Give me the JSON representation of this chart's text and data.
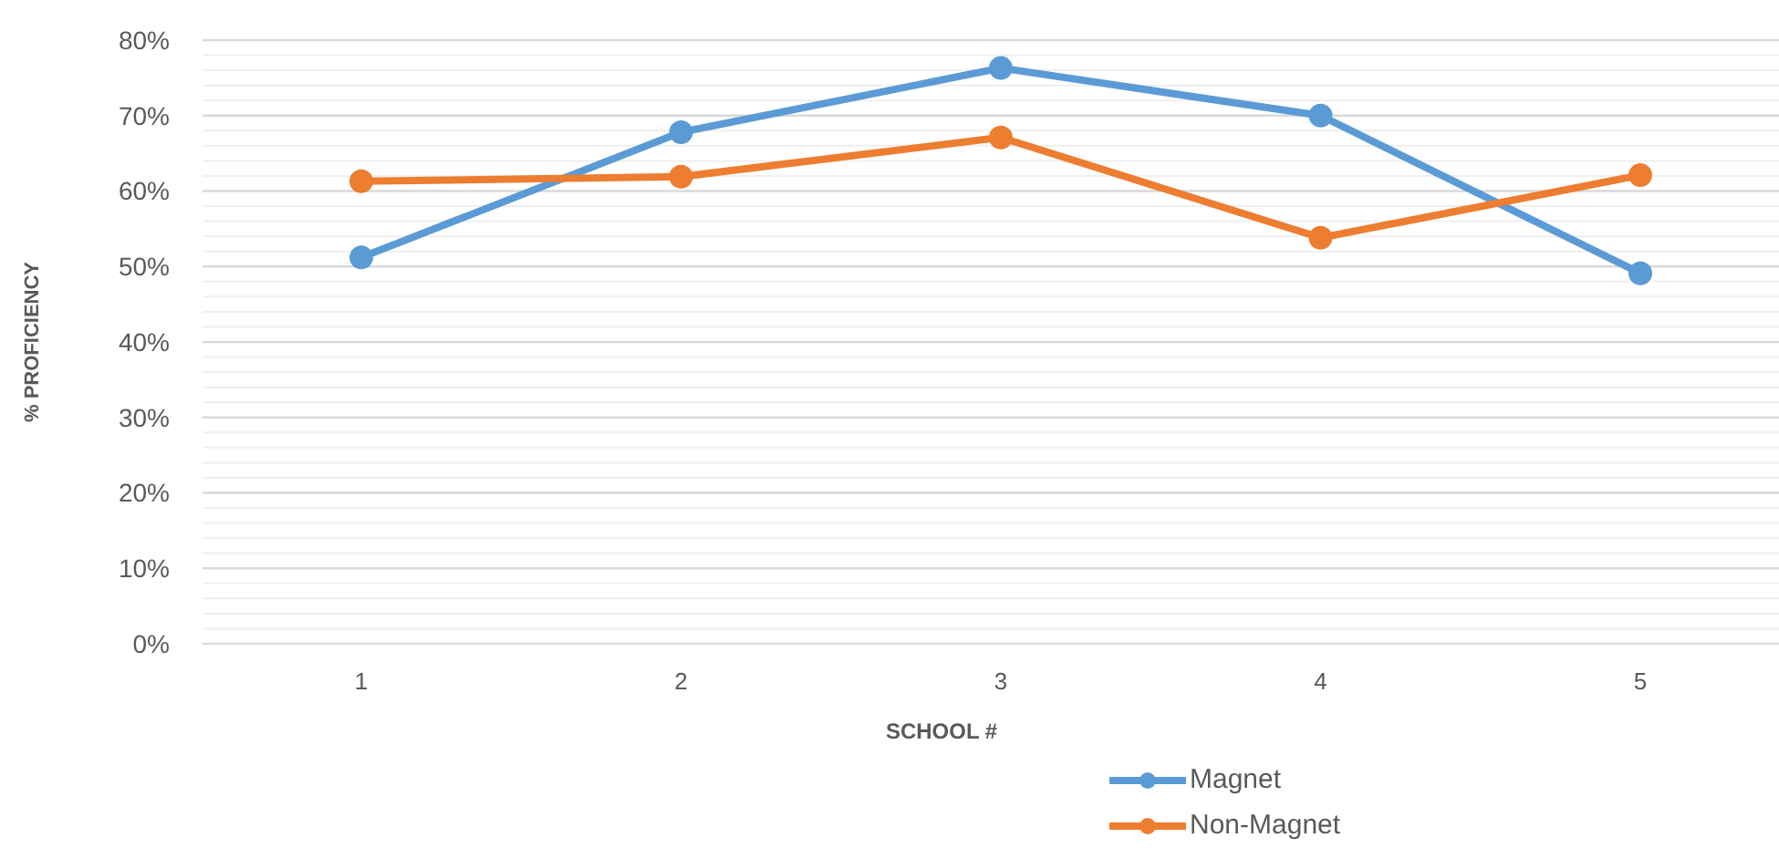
{
  "chart_data": {
    "type": "line",
    "xlabel": "SCHOOL #",
    "ylabel": "% PROFICIENCY",
    "categories": [
      "1",
      "2",
      "3",
      "4",
      "5"
    ],
    "series": [
      {
        "name": "Magnet",
        "color": "#5b9bd5",
        "values": [
          51.2,
          67.8,
          76.3,
          70.0,
          49.1
        ]
      },
      {
        "name": "Non-Magnet",
        "color": "#ed7d31",
        "values": [
          61.3,
          61.9,
          67.1,
          53.8,
          62.1
        ]
      }
    ],
    "ylim": [
      0,
      80
    ],
    "yticks": [
      {
        "value": 0,
        "label": "0%"
      },
      {
        "value": 2,
        "label": null
      },
      {
        "value": 4,
        "label": null
      },
      {
        "value": 6,
        "label": null
      },
      {
        "value": 8,
        "label": null
      },
      {
        "value": 10,
        "label": "10%"
      },
      {
        "value": 12,
        "label": null
      },
      {
        "value": 14,
        "label": null
      },
      {
        "value": 16,
        "label": null
      },
      {
        "value": 18,
        "label": null
      },
      {
        "value": 20,
        "label": "20%"
      },
      {
        "value": 22,
        "label": null
      },
      {
        "value": 24,
        "label": null
      },
      {
        "value": 26,
        "label": null
      },
      {
        "value": 28,
        "label": null
      },
      {
        "value": 30,
        "label": "30%"
      },
      {
        "value": 32,
        "label": null
      },
      {
        "value": 34,
        "label": null
      },
      {
        "value": 36,
        "label": null
      },
      {
        "value": 38,
        "label": null
      },
      {
        "value": 40,
        "label": "40%"
      },
      {
        "value": 42,
        "label": null
      },
      {
        "value": 44,
        "label": null
      },
      {
        "value": 46,
        "label": null
      },
      {
        "value": 48,
        "label": null
      },
      {
        "value": 50,
        "label": "50%"
      },
      {
        "value": 52,
        "label": null
      },
      {
        "value": 54,
        "label": null
      },
      {
        "value": 56,
        "label": null
      },
      {
        "value": 58,
        "label": null
      },
      {
        "value": 60,
        "label": "60%"
      },
      {
        "value": 62,
        "label": null
      },
      {
        "value": 64,
        "label": null
      },
      {
        "value": 66,
        "label": null
      },
      {
        "value": 68,
        "label": null
      },
      {
        "value": 70,
        "label": "70%"
      },
      {
        "value": 72,
        "label": null
      },
      {
        "value": 74,
        "label": null
      },
      {
        "value": 76,
        "label": null
      },
      {
        "value": 78,
        "label": null
      },
      {
        "value": 80,
        "label": "80%"
      }
    ],
    "grid": "y",
    "legend": "bottom",
    "marker": "circle",
    "line_style": "solid"
  }
}
